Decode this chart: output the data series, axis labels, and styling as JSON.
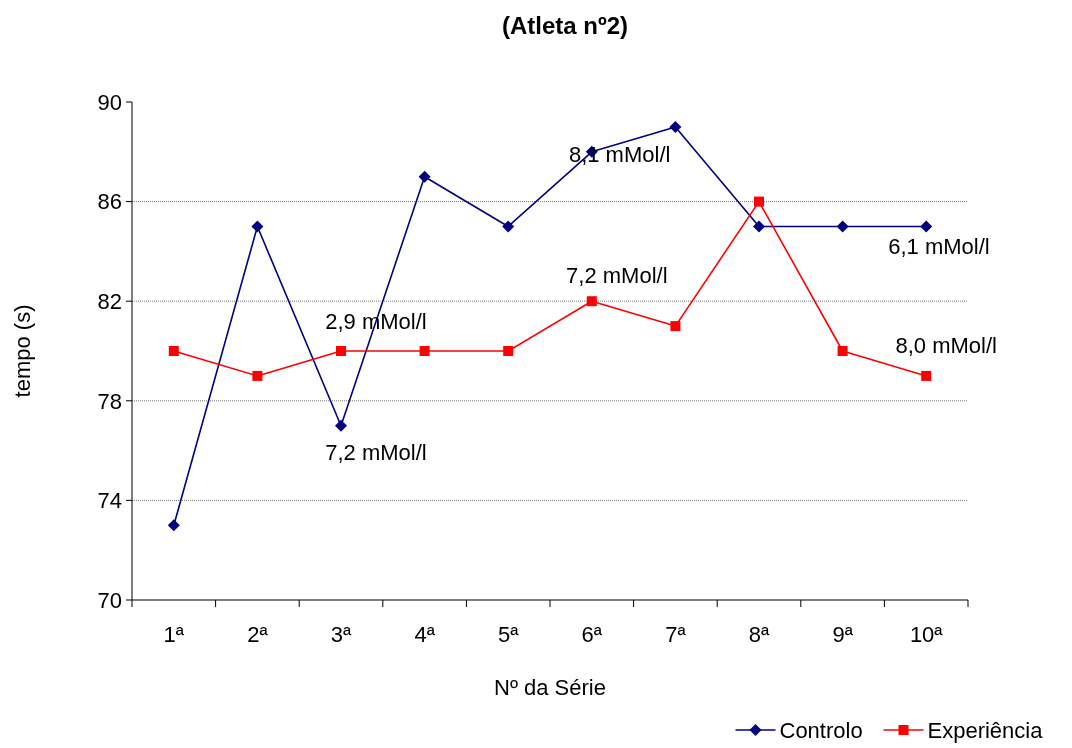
{
  "chart_data": {
    "type": "line",
    "title": "(Atleta nº2)",
    "xlabel": "Nº da Série",
    "ylabel": "tempo (s)",
    "categories": [
      "1ª",
      "2ª",
      "3ª",
      "4ª",
      "5ª",
      "6ª",
      "7ª",
      "8ª",
      "9ª",
      "10ª"
    ],
    "series": [
      {
        "name": "Controlo",
        "color": "#000080",
        "marker": "diamond",
        "values": [
          73,
          85,
          77,
          87,
          85,
          88,
          89,
          85,
          85,
          85
        ]
      },
      {
        "name": "Experiência",
        "color": "#ff0000",
        "marker": "square",
        "values": [
          80,
          79,
          80,
          80,
          80,
          82,
          81,
          86,
          80,
          79
        ]
      }
    ],
    "ylim": [
      70,
      90
    ],
    "yticks": [
      70,
      74,
      78,
      82,
      86,
      90
    ],
    "grid": "y",
    "legend": "bottom right",
    "line_style": "solid",
    "annotations": [
      {
        "text": "2,9 mMol/l",
        "x": "3ª",
        "y": 80
      },
      {
        "text": "7,2 mMol/l",
        "x": "3ª",
        "y": 77
      },
      {
        "text": "8,1 mMol/l",
        "x": "7ª",
        "y": 89
      },
      {
        "text": "7,2 mMol/l",
        "x": "6ª",
        "y": 82
      },
      {
        "text": "6,1 mMol/l",
        "x": "10ª",
        "y": 85
      },
      {
        "text": "8,0 mMol/l",
        "x": "10ª",
        "y": 79
      }
    ]
  }
}
